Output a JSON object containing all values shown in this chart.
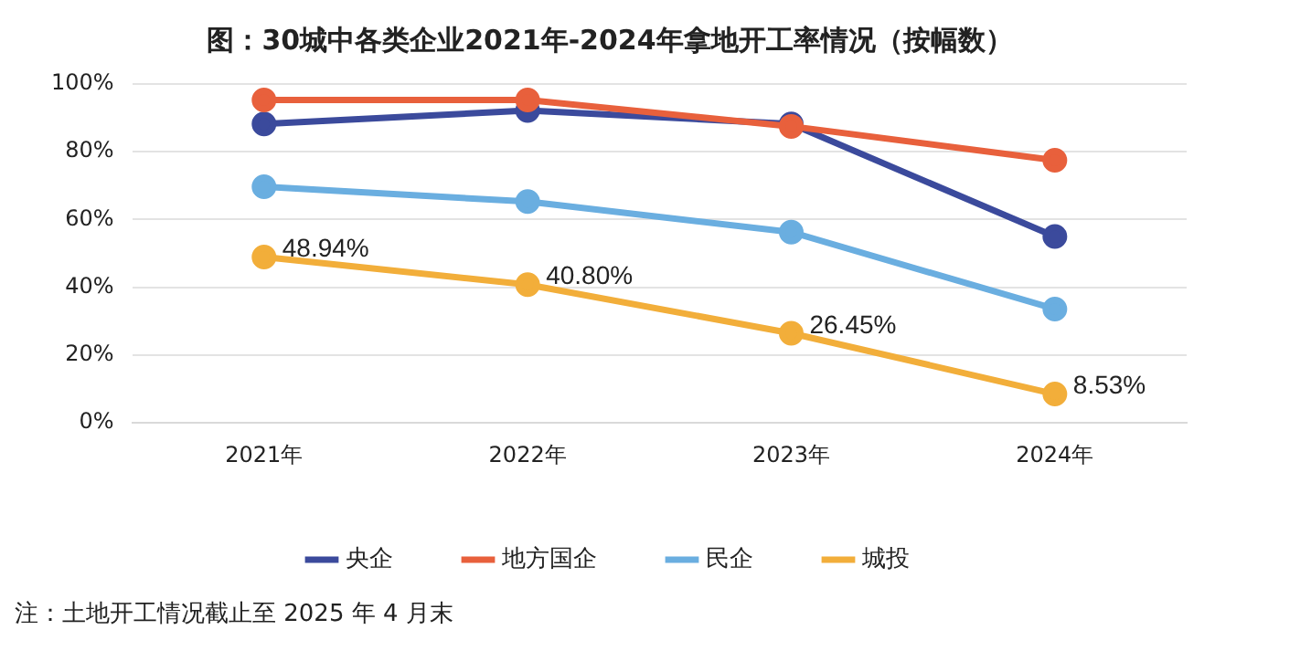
{
  "chart_data": {
    "type": "line",
    "title": "图：30城中各类企业2021年-2024年拿地开工率情况（按幅数）",
    "categories": [
      "2021年",
      "2022年",
      "2023年",
      "2024年"
    ],
    "series": [
      {
        "name": "央企",
        "color": "#3b4a9c",
        "values": [
          88.2,
          92.2,
          88.2,
          55.0
        ]
      },
      {
        "name": "地方国企",
        "color": "#e8603c",
        "values": [
          95.3,
          95.3,
          87.5,
          77.5
        ]
      },
      {
        "name": "民企",
        "color": "#6aaee0",
        "values": [
          69.7,
          65.3,
          56.3,
          33.6
        ]
      },
      {
        "name": "城投",
        "color": "#f2ae3a",
        "values": [
          48.94,
          40.8,
          26.45,
          8.53
        ],
        "value_labels": [
          "48.94%",
          "40.80%",
          "26.45%",
          "8.53%"
        ]
      }
    ],
    "ylim": [
      0,
      100
    ],
    "yticks": [
      {
        "value": 0,
        "label": "0%"
      },
      {
        "value": 20,
        "label": "20%"
      },
      {
        "value": 40,
        "label": "40%"
      },
      {
        "value": 60,
        "label": "60%"
      },
      {
        "value": 80,
        "label": "80%"
      },
      {
        "value": 100,
        "label": "100%"
      }
    ],
    "grid": "y",
    "legend": "bottom",
    "marker": "circle",
    "line_style": "solid",
    "annotations": [
      "注：土地开工情况截止至 2025 年 4 月末"
    ]
  }
}
